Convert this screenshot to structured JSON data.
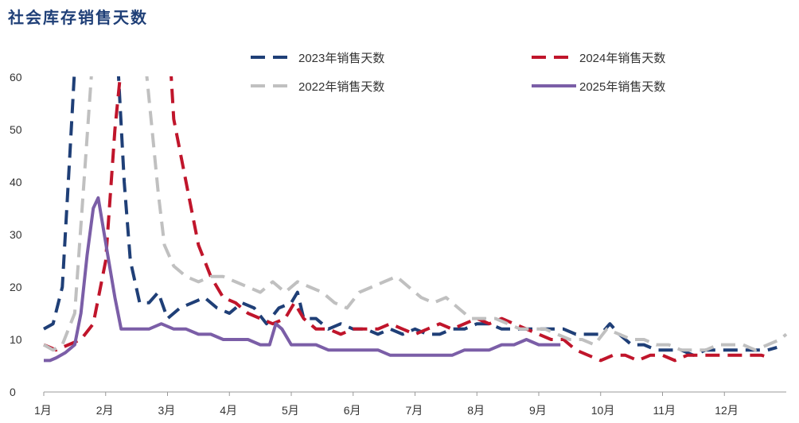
{
  "chart_data": {
    "type": "line",
    "title": "社会库存销售天数",
    "xlabel": "",
    "ylabel": "",
    "ylim": [
      0,
      60
    ],
    "xlim": [
      1,
      13
    ],
    "y_ticks": [
      0,
      10,
      20,
      30,
      40,
      50,
      60
    ],
    "x_ticks": [
      {
        "label": "1月",
        "x": 1
      },
      {
        "label": "2月",
        "x": 2
      },
      {
        "label": "3月",
        "x": 3
      },
      {
        "label": "4月",
        "x": 4
      },
      {
        "label": "5月",
        "x": 5
      },
      {
        "label": "6月",
        "x": 6
      },
      {
        "label": "7月",
        "x": 7
      },
      {
        "label": "8月",
        "x": 8
      },
      {
        "label": "9月",
        "x": 9
      },
      {
        "label": "10月",
        "x": 10
      },
      {
        "label": "11月",
        "x": 11
      },
      {
        "label": "12月",
        "x": 12
      }
    ],
    "grid": false,
    "legend_position": "top",
    "series": [
      {
        "name": "2023年销售天数",
        "color": "#1f3f77",
        "dash": true,
        "points": [
          [
            1.0,
            12
          ],
          [
            1.15,
            13
          ],
          [
            1.3,
            20
          ],
          [
            1.42,
            45
          ],
          [
            1.5,
            62
          ],
          [
            1.62,
            null
          ],
          [
            2.2,
            62
          ],
          [
            2.3,
            40
          ],
          [
            2.4,
            25
          ],
          [
            2.55,
            17
          ],
          [
            2.7,
            17
          ],
          [
            2.85,
            19
          ],
          [
            3.0,
            14
          ],
          [
            3.2,
            16
          ],
          [
            3.4,
            17
          ],
          [
            3.6,
            18
          ],
          [
            3.8,
            16
          ],
          [
            4.0,
            15
          ],
          [
            4.2,
            17
          ],
          [
            4.4,
            16
          ],
          [
            4.6,
            13
          ],
          [
            4.8,
            16
          ],
          [
            5.0,
            17
          ],
          [
            5.1,
            19
          ],
          [
            5.2,
            14
          ],
          [
            5.4,
            14
          ],
          [
            5.6,
            12
          ],
          [
            5.8,
            13
          ],
          [
            6.0,
            12
          ],
          [
            6.2,
            12
          ],
          [
            6.4,
            11
          ],
          [
            6.6,
            12
          ],
          [
            6.8,
            11
          ],
          [
            7.0,
            12
          ],
          [
            7.2,
            11
          ],
          [
            7.4,
            11
          ],
          [
            7.6,
            12
          ],
          [
            7.8,
            12
          ],
          [
            8.0,
            13
          ],
          [
            8.2,
            13
          ],
          [
            8.4,
            12
          ],
          [
            8.6,
            12
          ],
          [
            8.8,
            12
          ],
          [
            9.0,
            12
          ],
          [
            9.2,
            12
          ],
          [
            9.4,
            12
          ],
          [
            9.6,
            11
          ],
          [
            9.8,
            11
          ],
          [
            10.0,
            11
          ],
          [
            10.15,
            13
          ],
          [
            10.3,
            11
          ],
          [
            10.5,
            9
          ],
          [
            10.7,
            9
          ],
          [
            10.9,
            8
          ],
          [
            11.1,
            8
          ],
          [
            11.3,
            8
          ],
          [
            11.5,
            7
          ],
          [
            11.7,
            8
          ],
          [
            11.9,
            8
          ],
          [
            12.1,
            8
          ],
          [
            12.3,
            8
          ],
          [
            12.5,
            8
          ],
          [
            12.7,
            8
          ],
          [
            12.85,
            8.5
          ]
        ]
      },
      {
        "name": "2024年销售天数",
        "color": "#c0152b",
        "dash": true,
        "points": [
          [
            1.0,
            9
          ],
          [
            1.2,
            8
          ],
          [
            1.4,
            9
          ],
          [
            1.6,
            10
          ],
          [
            1.8,
            13
          ],
          [
            2.0,
            25
          ],
          [
            2.15,
            50
          ],
          [
            2.25,
            62
          ],
          [
            2.35,
            null
          ],
          [
            3.05,
            62
          ],
          [
            3.1,
            52
          ],
          [
            3.3,
            40
          ],
          [
            3.5,
            28
          ],
          [
            3.7,
            22
          ],
          [
            3.9,
            18
          ],
          [
            4.1,
            17
          ],
          [
            4.3,
            15
          ],
          [
            4.5,
            14
          ],
          [
            4.7,
            13
          ],
          [
            4.9,
            14
          ],
          [
            5.05,
            17
          ],
          [
            5.2,
            14
          ],
          [
            5.4,
            12
          ],
          [
            5.6,
            12
          ],
          [
            5.8,
            11
          ],
          [
            6.0,
            12
          ],
          [
            6.2,
            12
          ],
          [
            6.4,
            12
          ],
          [
            6.6,
            13
          ],
          [
            6.8,
            12
          ],
          [
            7.0,
            11
          ],
          [
            7.2,
            12
          ],
          [
            7.4,
            13
          ],
          [
            7.6,
            12
          ],
          [
            7.8,
            13
          ],
          [
            8.0,
            14
          ],
          [
            8.2,
            13
          ],
          [
            8.4,
            14
          ],
          [
            8.6,
            13
          ],
          [
            8.8,
            12
          ],
          [
            9.0,
            11
          ],
          [
            9.2,
            10
          ],
          [
            9.4,
            10
          ],
          [
            9.6,
            8
          ],
          [
            9.8,
            7
          ],
          [
            10.0,
            6
          ],
          [
            10.2,
            7
          ],
          [
            10.4,
            7
          ],
          [
            10.6,
            6
          ],
          [
            10.8,
            7
          ],
          [
            11.0,
            7
          ],
          [
            11.2,
            6
          ],
          [
            11.4,
            7
          ],
          [
            11.6,
            7
          ],
          [
            11.8,
            7
          ],
          [
            12.0,
            7
          ],
          [
            12.2,
            7
          ],
          [
            12.4,
            7
          ],
          [
            12.6,
            7
          ],
          [
            12.75,
            6.5
          ]
        ]
      },
      {
        "name": "2022年销售天数",
        "color": "#c0c0c0",
        "dash": true,
        "points": [
          [
            1.0,
            9
          ],
          [
            1.15,
            8
          ],
          [
            1.3,
            9
          ],
          [
            1.5,
            15
          ],
          [
            1.65,
            40
          ],
          [
            1.78,
            62
          ],
          [
            1.9,
            null
          ],
          [
            2.65,
            62
          ],
          [
            2.75,
            50
          ],
          [
            2.85,
            38
          ],
          [
            2.95,
            28
          ],
          [
            3.1,
            24
          ],
          [
            3.3,
            22
          ],
          [
            3.5,
            21
          ],
          [
            3.7,
            22
          ],
          [
            3.9,
            22
          ],
          [
            4.1,
            21
          ],
          [
            4.3,
            20
          ],
          [
            4.5,
            19
          ],
          [
            4.7,
            21
          ],
          [
            4.9,
            19
          ],
          [
            5.1,
            21
          ],
          [
            5.3,
            20
          ],
          [
            5.5,
            19
          ],
          [
            5.7,
            17
          ],
          [
            5.9,
            16
          ],
          [
            6.1,
            19
          ],
          [
            6.3,
            20
          ],
          [
            6.5,
            21
          ],
          [
            6.7,
            22
          ],
          [
            6.9,
            20
          ],
          [
            7.1,
            18
          ],
          [
            7.3,
            17
          ],
          [
            7.5,
            18
          ],
          [
            7.7,
            16
          ],
          [
            7.9,
            14
          ],
          [
            8.1,
            14
          ],
          [
            8.3,
            14
          ],
          [
            8.5,
            13
          ],
          [
            8.7,
            12
          ],
          [
            8.9,
            12
          ],
          [
            9.1,
            12
          ],
          [
            9.3,
            11
          ],
          [
            9.5,
            10
          ],
          [
            9.7,
            10
          ],
          [
            9.9,
            9
          ],
          [
            10.1,
            12
          ],
          [
            10.3,
            11
          ],
          [
            10.5,
            10
          ],
          [
            10.7,
            10
          ],
          [
            10.9,
            9
          ],
          [
            11.1,
            9
          ],
          [
            11.3,
            8
          ],
          [
            11.5,
            8
          ],
          [
            11.7,
            8
          ],
          [
            11.9,
            9
          ],
          [
            12.1,
            9
          ],
          [
            12.3,
            9
          ],
          [
            12.5,
            8
          ],
          [
            12.7,
            9
          ],
          [
            12.9,
            10
          ],
          [
            13.0,
            11
          ]
        ]
      },
      {
        "name": "2025年销售天数",
        "color": "#7b5ea7",
        "dash": false,
        "points": [
          [
            1.0,
            6
          ],
          [
            1.1,
            6
          ],
          [
            1.2,
            6.5
          ],
          [
            1.35,
            7.5
          ],
          [
            1.5,
            9
          ],
          [
            1.6,
            15
          ],
          [
            1.7,
            26
          ],
          [
            1.8,
            35
          ],
          [
            1.88,
            37
          ],
          [
            1.95,
            32
          ],
          [
            2.05,
            25
          ],
          [
            2.15,
            18
          ],
          [
            2.25,
            12
          ],
          [
            2.35,
            12
          ],
          [
            2.5,
            12
          ],
          [
            2.7,
            12
          ],
          [
            2.9,
            13
          ],
          [
            3.1,
            12
          ],
          [
            3.3,
            12
          ],
          [
            3.5,
            11
          ],
          [
            3.7,
            11
          ],
          [
            3.9,
            10
          ],
          [
            4.1,
            10
          ],
          [
            4.3,
            10
          ],
          [
            4.5,
            9
          ],
          [
            4.65,
            9
          ],
          [
            4.75,
            13
          ],
          [
            4.85,
            12
          ],
          [
            5.0,
            9
          ],
          [
            5.2,
            9
          ],
          [
            5.4,
            9
          ],
          [
            5.6,
            8
          ],
          [
            5.8,
            8
          ],
          [
            6.0,
            8
          ],
          [
            6.2,
            8
          ],
          [
            6.4,
            8
          ],
          [
            6.6,
            7
          ],
          [
            6.8,
            7
          ],
          [
            7.0,
            7
          ],
          [
            7.2,
            7
          ],
          [
            7.4,
            7
          ],
          [
            7.6,
            7
          ],
          [
            7.8,
            8
          ],
          [
            8.0,
            8
          ],
          [
            8.2,
            8
          ],
          [
            8.4,
            9
          ],
          [
            8.6,
            9
          ],
          [
            8.8,
            10
          ],
          [
            9.0,
            9
          ],
          [
            9.2,
            9
          ],
          [
            9.35,
            9
          ]
        ]
      }
    ]
  }
}
